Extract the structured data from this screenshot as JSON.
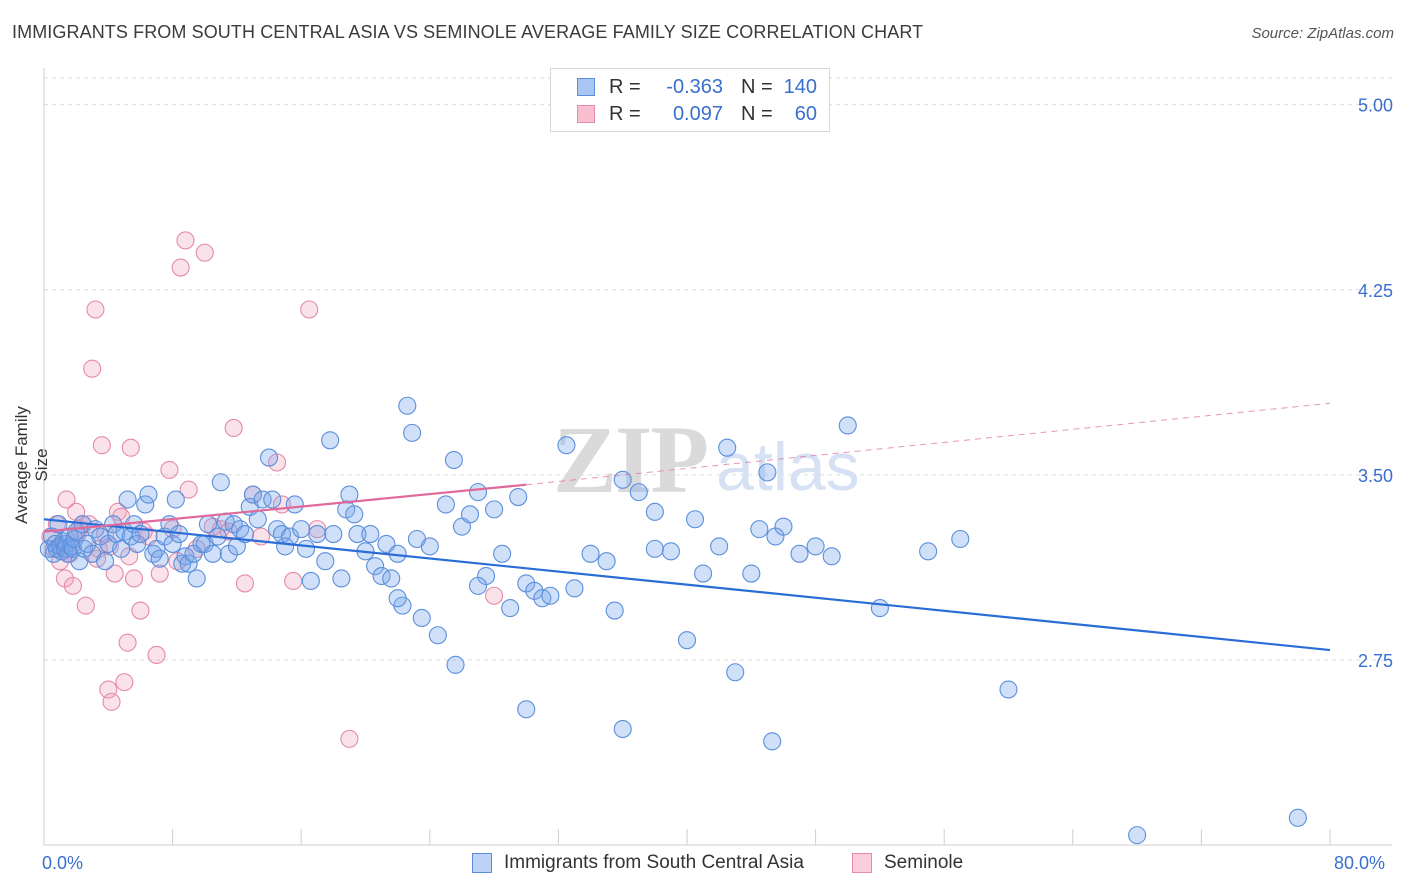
{
  "header": {
    "title": "IMMIGRANTS FROM SOUTH CENTRAL ASIA VS SEMINOLE AVERAGE FAMILY SIZE CORRELATION CHART",
    "source": "Source: ZipAtlas.com"
  },
  "legend": {
    "rows": [
      {
        "r_label": "R =",
        "r_value": "-0.363",
        "n_label": "N =",
        "n_value": "140",
        "color": "#a9c6f2",
        "border": "#5b8fdc"
      },
      {
        "r_label": "R =",
        "r_value": "0.097",
        "n_label": "N =",
        "n_value": "60",
        "color": "#f7bfd0",
        "border": "#e88aa8"
      }
    ]
  },
  "bottom_legend": {
    "series1": "Immigrants from South Central Asia",
    "series2": "Seminole"
  },
  "colors": {
    "blue_fill": "rgba(120,165,235,0.35)",
    "blue_stroke": "#5b8fdc",
    "blue_line": "#2a6dd6",
    "pink_fill": "rgba(240,160,185,0.30)",
    "pink_stroke": "#e58aa8",
    "pink_line": "#e0689a",
    "axis_label": "#3a6fd0",
    "grid": "#dcdcdc"
  },
  "chart_data": {
    "type": "scatter",
    "xlabel": "",
    "ylabel": "Average Family Size",
    "xlim": [
      0,
      80
    ],
    "ylim": [
      2.0,
      5.1
    ],
    "x_tick_labels": {
      "min": "0.0%",
      "max": "80.0%"
    },
    "y_ticks": [
      {
        "value": 5.0,
        "label": "5.00"
      },
      {
        "value": 4.25,
        "label": "4.25"
      },
      {
        "value": 3.5,
        "label": "3.50"
      },
      {
        "value": 2.75,
        "label": "2.75"
      }
    ],
    "watermark": {
      "zip": "ZIP",
      "atlas": "atlas"
    },
    "series": [
      {
        "name": "Immigrants from South Central Asia",
        "trend": {
          "x0": 0,
          "y0": 3.32,
          "x1": 80,
          "y1": 2.79
        },
        "points": [
          [
            0.3,
            3.2
          ],
          [
            0.5,
            3.25
          ],
          [
            0.6,
            3.18
          ],
          [
            0.7,
            3.22
          ],
          [
            0.8,
            3.2
          ],
          [
            0.9,
            3.3
          ],
          [
            1.0,
            3.21
          ],
          [
            1.1,
            3.19
          ],
          [
            1.2,
            3.23
          ],
          [
            1.3,
            3.2
          ],
          [
            1.4,
            3.22
          ],
          [
            1.5,
            3.18
          ],
          [
            1.6,
            3.25
          ],
          [
            1.7,
            3.21
          ],
          [
            1.8,
            3.2
          ],
          [
            1.9,
            3.24
          ],
          [
            2.0,
            3.27
          ],
          [
            2.2,
            3.15
          ],
          [
            2.4,
            3.3
          ],
          [
            2.5,
            3.2
          ],
          [
            2.7,
            3.22
          ],
          [
            3.0,
            3.18
          ],
          [
            3.2,
            3.28
          ],
          [
            3.5,
            3.25
          ],
          [
            3.8,
            3.15
          ],
          [
            4.0,
            3.22
          ],
          [
            4.3,
            3.3
          ],
          [
            4.5,
            3.26
          ],
          [
            4.8,
            3.2
          ],
          [
            5.0,
            3.27
          ],
          [
            5.2,
            3.4
          ],
          [
            5.4,
            3.25
          ],
          [
            5.6,
            3.3
          ],
          [
            5.8,
            3.22
          ],
          [
            6.0,
            3.26
          ],
          [
            6.3,
            3.38
          ],
          [
            6.5,
            3.42
          ],
          [
            6.8,
            3.18
          ],
          [
            7.0,
            3.2
          ],
          [
            7.2,
            3.16
          ],
          [
            7.5,
            3.25
          ],
          [
            7.8,
            3.3
          ],
          [
            8.0,
            3.22
          ],
          [
            8.2,
            3.4
          ],
          [
            8.4,
            3.26
          ],
          [
            8.6,
            3.14
          ],
          [
            8.8,
            3.17
          ],
          [
            9.0,
            3.14
          ],
          [
            9.3,
            3.18
          ],
          [
            9.5,
            3.08
          ],
          [
            9.8,
            3.22
          ],
          [
            10.0,
            3.22
          ],
          [
            10.2,
            3.3
          ],
          [
            10.5,
            3.18
          ],
          [
            10.8,
            3.25
          ],
          [
            11.0,
            3.47
          ],
          [
            11.3,
            3.31
          ],
          [
            11.5,
            3.18
          ],
          [
            11.8,
            3.3
          ],
          [
            12.0,
            3.21
          ],
          [
            12.2,
            3.28
          ],
          [
            12.5,
            3.26
          ],
          [
            12.8,
            3.37
          ],
          [
            13.0,
            3.42
          ],
          [
            13.3,
            3.32
          ],
          [
            13.6,
            3.4
          ],
          [
            14.0,
            3.57
          ],
          [
            14.2,
            3.4
          ],
          [
            14.5,
            3.28
          ],
          [
            14.8,
            3.26
          ],
          [
            15.0,
            3.21
          ],
          [
            15.3,
            3.25
          ],
          [
            15.6,
            3.38
          ],
          [
            16.0,
            3.28
          ],
          [
            16.3,
            3.2
          ],
          [
            16.6,
            3.07
          ],
          [
            17.0,
            3.26
          ],
          [
            17.5,
            3.15
          ],
          [
            17.8,
            3.64
          ],
          [
            18.0,
            3.26
          ],
          [
            18.5,
            3.08
          ],
          [
            18.8,
            3.36
          ],
          [
            19.0,
            3.42
          ],
          [
            19.3,
            3.34
          ],
          [
            19.5,
            3.26
          ],
          [
            20.0,
            3.19
          ],
          [
            20.3,
            3.26
          ],
          [
            20.6,
            3.13
          ],
          [
            21.0,
            3.09
          ],
          [
            21.3,
            3.22
          ],
          [
            21.6,
            3.08
          ],
          [
            22.0,
            3.18
          ],
          [
            22.3,
            2.97
          ],
          [
            22.6,
            3.78
          ],
          [
            22.9,
            3.67
          ],
          [
            23.2,
            3.24
          ],
          [
            23.5,
            2.92
          ],
          [
            24.0,
            3.21
          ],
          [
            24.5,
            2.85
          ],
          [
            25.0,
            3.38
          ],
          [
            25.5,
            3.56
          ],
          [
            26.0,
            3.29
          ],
          [
            26.5,
            3.34
          ],
          [
            27.0,
            3.43
          ],
          [
            27.5,
            3.09
          ],
          [
            28.0,
            3.36
          ],
          [
            28.5,
            3.18
          ],
          [
            29.0,
            2.96
          ],
          [
            29.5,
            3.41
          ],
          [
            30.0,
            3.06
          ],
          [
            30.5,
            3.03
          ],
          [
            31.0,
            3.0
          ],
          [
            31.5,
            3.01
          ],
          [
            32.5,
            3.62
          ],
          [
            33.0,
            3.04
          ],
          [
            34.0,
            3.18
          ],
          [
            35.0,
            3.15
          ],
          [
            35.5,
            2.95
          ],
          [
            36.0,
            3.48
          ],
          [
            37.0,
            3.43
          ],
          [
            38.0,
            3.2
          ],
          [
            39.0,
            3.19
          ],
          [
            40.0,
            2.83
          ],
          [
            41.0,
            3.1
          ],
          [
            42.0,
            3.21
          ],
          [
            42.5,
            3.61
          ],
          [
            43.0,
            2.7
          ],
          [
            44.0,
            3.1
          ],
          [
            44.5,
            3.28
          ],
          [
            45.0,
            3.51
          ],
          [
            45.5,
            3.25
          ],
          [
            46.0,
            3.29
          ],
          [
            47.0,
            3.18
          ],
          [
            48.0,
            3.21
          ],
          [
            49.0,
            3.17
          ],
          [
            50.0,
            3.7
          ],
          [
            52.0,
            2.96
          ],
          [
            55.0,
            3.19
          ],
          [
            57.0,
            3.24
          ],
          [
            60.0,
            2.63
          ],
          [
            25.6,
            2.73
          ],
          [
            30.0,
            2.55
          ],
          [
            36.0,
            2.47
          ],
          [
            38.0,
            3.35
          ],
          [
            40.5,
            3.32
          ],
          [
            45.3,
            2.42
          ],
          [
            68.0,
            2.04
          ],
          [
            78.0,
            2.11
          ],
          [
            22.0,
            3.0
          ],
          [
            27.0,
            3.05
          ]
        ]
      },
      {
        "name": "Seminole",
        "trend": {
          "x0": 0,
          "y0": 3.27,
          "x1": 30,
          "y1": 3.46,
          "dash_x1": 80,
          "dash_y1": 3.79
        },
        "points": [
          [
            0.4,
            3.25
          ],
          [
            0.6,
            3.2
          ],
          [
            0.8,
            3.3
          ],
          [
            1.0,
            3.15
          ],
          [
            1.2,
            3.22
          ],
          [
            1.3,
            3.08
          ],
          [
            1.4,
            3.4
          ],
          [
            1.6,
            3.18
          ],
          [
            1.8,
            3.05
          ],
          [
            2.0,
            3.35
          ],
          [
            2.2,
            3.28
          ],
          [
            2.4,
            3.3
          ],
          [
            2.6,
            2.97
          ],
          [
            2.8,
            3.3
          ],
          [
            3.0,
            3.93
          ],
          [
            3.2,
            4.17
          ],
          [
            3.4,
            3.2
          ],
          [
            3.6,
            3.62
          ],
          [
            3.8,
            3.26
          ],
          [
            4.0,
            2.63
          ],
          [
            4.2,
            2.58
          ],
          [
            4.4,
            3.1
          ],
          [
            4.6,
            3.35
          ],
          [
            4.8,
            3.33
          ],
          [
            5.0,
            2.66
          ],
          [
            5.2,
            2.82
          ],
          [
            5.4,
            3.61
          ],
          [
            5.6,
            3.08
          ],
          [
            6.0,
            2.95
          ],
          [
            6.5,
            3.25
          ],
          [
            7.0,
            2.77
          ],
          [
            7.2,
            3.1
          ],
          [
            7.8,
            3.52
          ],
          [
            8.0,
            3.28
          ],
          [
            8.5,
            4.34
          ],
          [
            8.8,
            4.45
          ],
          [
            9.0,
            3.44
          ],
          [
            9.5,
            3.2
          ],
          [
            10.0,
            4.4
          ],
          [
            11.0,
            3.28
          ],
          [
            11.8,
            3.69
          ],
          [
            12.5,
            3.06
          ],
          [
            13.0,
            3.42
          ],
          [
            13.5,
            3.25
          ],
          [
            14.5,
            3.55
          ],
          [
            14.8,
            3.38
          ],
          [
            15.5,
            3.07
          ],
          [
            16.5,
            4.17
          ],
          [
            17.0,
            3.28
          ],
          [
            19.0,
            2.43
          ],
          [
            1.5,
            3.2
          ],
          [
            2.1,
            3.26
          ],
          [
            3.3,
            3.16
          ],
          [
            4.1,
            3.21
          ],
          [
            5.3,
            3.17
          ],
          [
            6.2,
            3.27
          ],
          [
            8.3,
            3.15
          ],
          [
            10.5,
            3.29
          ],
          [
            11.5,
            3.27
          ],
          [
            28.0,
            3.01
          ]
        ]
      }
    ]
  }
}
